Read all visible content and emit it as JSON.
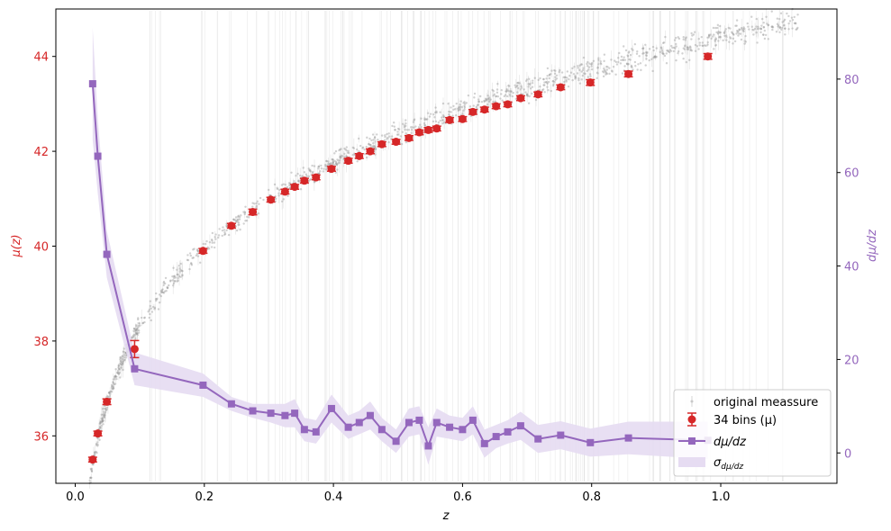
{
  "chart_data": {
    "type": "scatter",
    "title": "",
    "xlabel": "z",
    "ylabel_left": "μ(z)",
    "ylabel_right": "dμ/dz",
    "xlim": [
      -0.03,
      1.18
    ],
    "ylim_left": [
      35.0,
      45.0
    ],
    "ylim_right": [
      -6.5,
      95.0
    ],
    "xticks": [
      0.0,
      0.2,
      0.4,
      0.6,
      0.8,
      1.0
    ],
    "xtick_labels": [
      "0.0",
      "0.2",
      "0.4",
      "0.6",
      "0.8",
      "1.0"
    ],
    "yticks_left": [
      36,
      38,
      40,
      42,
      44
    ],
    "ytick_labels_left": [
      "36",
      "38",
      "40",
      "42",
      "44"
    ],
    "yticks_right": [
      0,
      20,
      40,
      60,
      80
    ],
    "ytick_labels_right": [
      "0",
      "20",
      "40",
      "60",
      "80"
    ],
    "grid": false,
    "legend_position": "lower-right",
    "colors": {
      "bins": "#d62728",
      "derivative": "#9467bd",
      "band": "#e6dcf2",
      "scatter": "#a0a0a0",
      "left_axis_text": "#d62728",
      "right_axis_text": "#9467bd"
    },
    "series": [
      {
        "name": "original meassure",
        "kind": "scatter",
        "description_range": {
          "z_min": 0.01,
          "z_max": 1.12
        }
      },
      {
        "name": "34 bins (μ)",
        "kind": "errorbar",
        "axis": "left",
        "x": [
          0.027,
          0.035,
          0.049,
          0.092,
          0.198,
          0.242,
          0.275,
          0.303,
          0.325,
          0.34,
          0.355,
          0.373,
          0.397,
          0.423,
          0.44,
          0.457,
          0.475,
          0.497,
          0.517,
          0.533,
          0.547,
          0.56,
          0.58,
          0.6,
          0.616,
          0.634,
          0.652,
          0.67,
          0.69,
          0.717,
          0.752,
          0.798,
          0.857,
          0.98
        ],
        "y": [
          35.5,
          36.05,
          36.72,
          37.83,
          39.9,
          40.43,
          40.72,
          40.98,
          41.15,
          41.25,
          41.38,
          41.45,
          41.63,
          41.8,
          41.9,
          42.0,
          42.15,
          42.2,
          42.28,
          42.4,
          42.45,
          42.48,
          42.66,
          42.68,
          42.83,
          42.88,
          42.95,
          42.99,
          43.12,
          43.2,
          43.35,
          43.45,
          43.63,
          44.0
        ],
        "yerr": [
          0.05,
          0.05,
          0.06,
          0.18,
          0.05,
          0.05,
          0.06,
          0.05,
          0.05,
          0.05,
          0.05,
          0.05,
          0.05,
          0.05,
          0.05,
          0.05,
          0.05,
          0.05,
          0.05,
          0.05,
          0.05,
          0.05,
          0.05,
          0.05,
          0.05,
          0.05,
          0.05,
          0.05,
          0.05,
          0.05,
          0.05,
          0.06,
          0.06,
          0.06
        ]
      },
      {
        "name": "dμ/dz",
        "kind": "line",
        "axis": "right",
        "x": [
          0.027,
          0.035,
          0.049,
          0.092,
          0.198,
          0.242,
          0.275,
          0.303,
          0.325,
          0.34,
          0.355,
          0.373,
          0.397,
          0.423,
          0.44,
          0.457,
          0.475,
          0.497,
          0.517,
          0.533,
          0.547,
          0.56,
          0.58,
          0.6,
          0.616,
          0.634,
          0.652,
          0.67,
          0.69,
          0.717,
          0.752,
          0.798,
          0.857,
          0.98
        ],
        "y": [
          79,
          63.5,
          42.5,
          18,
          14.5,
          10.5,
          9,
          8.5,
          8,
          8.5,
          5,
          4.5,
          9.5,
          5.5,
          6.5,
          8,
          5,
          2.5,
          6.5,
          7,
          1.5,
          6.5,
          5.5,
          5,
          7,
          2,
          3.5,
          4.5,
          5.8,
          3,
          3.8,
          2.2,
          3.2,
          2.7
        ]
      },
      {
        "name": "σ_{dμ/dz}",
        "kind": "band",
        "axis": "right",
        "halfwidth": [
          12,
          8,
          5,
          3.5,
          2.5,
          1.5,
          1.5,
          2,
          2.5,
          3,
          2.5,
          2.5,
          3,
          2.5,
          2.5,
          3,
          2.5,
          2.5,
          3,
          3,
          4,
          3,
          2.5,
          2.5,
          3,
          3,
          2.5,
          2.5,
          3,
          3,
          3,
          3,
          3.5,
          4
        ]
      }
    ],
    "legend": {
      "scatter_label": "original meassure",
      "bins_label": "34 bins (μ)",
      "line_label": "dμ/dz",
      "band_label": "σ"
    }
  }
}
